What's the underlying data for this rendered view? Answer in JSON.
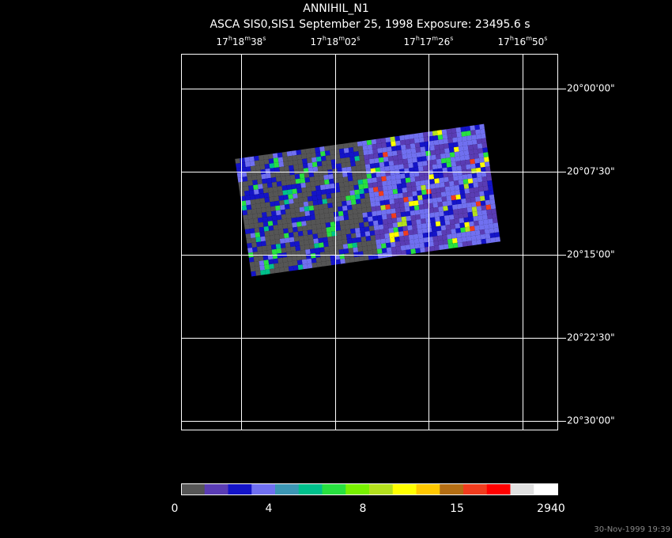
{
  "header": {
    "title": "ANNIHIL_N1",
    "subtitle": "ASCA SIS0,SIS1 September 25, 1998 Exposure: 23495.6 s"
  },
  "ra_labels": [
    [
      "17",
      "h",
      "18",
      "m",
      "38",
      "s"
    ],
    [
      "17",
      "h",
      "18",
      "m",
      "02",
      "s"
    ],
    [
      "17",
      "h",
      "17",
      "m",
      "26",
      "s"
    ],
    [
      "17",
      "h",
      "16",
      "m",
      "50",
      "s"
    ]
  ],
  "dec_labels": [
    "20°00'00\"",
    "20°07'30\"",
    "20°15'00\"",
    "20°22'30\"",
    "20°30'00\""
  ],
  "colorbar": {
    "colors": [
      "#555555",
      "#5a3cb4",
      "#1414c8",
      "#7070f0",
      "#3c96b4",
      "#00c08c",
      "#28e040",
      "#78f000",
      "#b4e01e",
      "#ffff00",
      "#ffc800",
      "#b46e14",
      "#f03c1e",
      "#ff0000",
      "#e0e0e0",
      "#ffffff"
    ],
    "labels": [
      0,
      4,
      8,
      15,
      2940
    ]
  },
  "timestamp": "30-Nov-1999 19:39"
}
